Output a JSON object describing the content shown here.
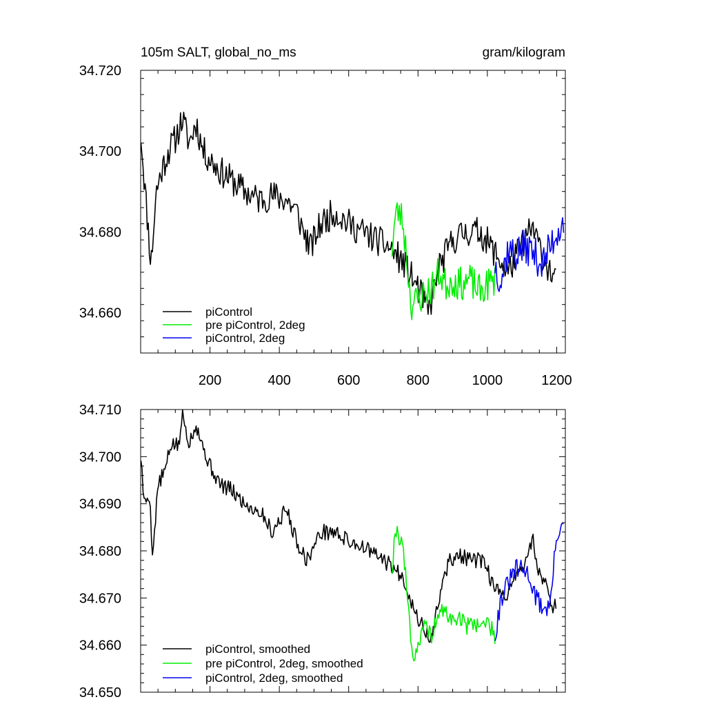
{
  "chart_data": [
    {
      "type": "line",
      "title": "105m SALT, global_no_ms",
      "units": "gram/kilogram",
      "xlim": [
        0,
        1225
      ],
      "ylim": [
        34.65,
        34.72
      ],
      "xticks": [
        200,
        400,
        600,
        800,
        1000,
        1200
      ],
      "xtick_labels": [
        "200",
        "400",
        "600",
        "800",
        "1000",
        "1200"
      ],
      "yticks": [
        34.66,
        34.68,
        34.7,
        34.72
      ],
      "ytick_labels": [
        "34.660",
        "34.680",
        "34.700",
        "34.720"
      ],
      "legend": {
        "placement": "bottom-left"
      },
      "series": [
        {
          "name": "piControl",
          "color": "#000000",
          "noise": 0.0038,
          "seed": 11,
          "points": [
            [
              1,
              34.704
            ],
            [
              15,
              34.688
            ],
            [
              30,
              34.672
            ],
            [
              45,
              34.69
            ],
            [
              60,
              34.695
            ],
            [
              80,
              34.7
            ],
            [
              100,
              34.703
            ],
            [
              120,
              34.708
            ],
            [
              140,
              34.702
            ],
            [
              160,
              34.707
            ],
            [
              180,
              34.7
            ],
            [
              200,
              34.698
            ],
            [
              230,
              34.695
            ],
            [
              260,
              34.693
            ],
            [
              300,
              34.69
            ],
            [
              340,
              34.688
            ],
            [
              380,
              34.689
            ],
            [
              420,
              34.688
            ],
            [
              450,
              34.685
            ],
            [
              470,
              34.68
            ],
            [
              490,
              34.676
            ],
            [
              520,
              34.682
            ],
            [
              560,
              34.685
            ],
            [
              600,
              34.682
            ],
            [
              640,
              34.68
            ],
            [
              680,
              34.678
            ],
            [
              720,
              34.676
            ],
            [
              760,
              34.672
            ],
            [
              800,
              34.666
            ],
            [
              830,
              34.66
            ],
            [
              860,
              34.671
            ],
            [
              900,
              34.678
            ],
            [
              940,
              34.68
            ],
            [
              980,
              34.68
            ],
            [
              1020,
              34.675
            ],
            [
              1060,
              34.67
            ],
            [
              1100,
              34.677
            ],
            [
              1130,
              34.681
            ],
            [
              1160,
              34.674
            ],
            [
              1200,
              34.667
            ]
          ]
        },
        {
          "name": "pre piControl, 2deg",
          "color": "#00ee00",
          "noise": 0.0042,
          "seed": 23,
          "points": [
            [
              725,
              34.676
            ],
            [
              735,
              34.684
            ],
            [
              745,
              34.685
            ],
            [
              755,
              34.683
            ],
            [
              765,
              34.676
            ],
            [
              780,
              34.662
            ],
            [
              800,
              34.663
            ],
            [
              820,
              34.665
            ],
            [
              840,
              34.666
            ],
            [
              860,
              34.67
            ],
            [
              880,
              34.667
            ],
            [
              900,
              34.668
            ],
            [
              920,
              34.667
            ],
            [
              950,
              34.668
            ],
            [
              980,
              34.665
            ],
            [
              1000,
              34.667
            ],
            [
              1022,
              34.668
            ]
          ]
        },
        {
          "name": "piControl, 2deg",
          "color": "#0000ee",
          "noise": 0.0045,
          "seed": 37,
          "points": [
            [
              1022,
              34.672
            ],
            [
              1040,
              34.668
            ],
            [
              1060,
              34.676
            ],
            [
              1080,
              34.674
            ],
            [
              1100,
              34.676
            ],
            [
              1120,
              34.676
            ],
            [
              1140,
              34.674
            ],
            [
              1160,
              34.672
            ],
            [
              1180,
              34.676
            ],
            [
              1200,
              34.68
            ],
            [
              1222,
              34.683
            ]
          ]
        }
      ]
    },
    {
      "type": "line",
      "title": "",
      "xlim": [
        0,
        1225
      ],
      "ylim": [
        34.65,
        34.71
      ],
      "xticks": [
        200,
        400,
        600,
        800,
        1000,
        1200
      ],
      "yticks": [
        34.65,
        34.66,
        34.67,
        34.68,
        34.69,
        34.7,
        34.71
      ],
      "ytick_labels": [
        "34.650",
        "34.660",
        "34.670",
        "34.680",
        "34.690",
        "34.700",
        "34.710"
      ],
      "legend": {
        "placement": "bottom-left"
      },
      "series": [
        {
          "name": "piControl, smoothed",
          "color": "#000000",
          "noise": 0.0017,
          "seed": 5,
          "points": [
            [
              1,
              34.7
            ],
            [
              10,
              34.69
            ],
            [
              25,
              34.692
            ],
            [
              35,
              34.679
            ],
            [
              50,
              34.694
            ],
            [
              70,
              34.697
            ],
            [
              90,
              34.703
            ],
            [
              110,
              34.702
            ],
            [
              120,
              34.709
            ],
            [
              140,
              34.703
            ],
            [
              160,
              34.707
            ],
            [
              180,
              34.702
            ],
            [
              200,
              34.698
            ],
            [
              230,
              34.694
            ],
            [
              260,
              34.693
            ],
            [
              300,
              34.69
            ],
            [
              350,
              34.688
            ],
            [
              380,
              34.684
            ],
            [
              420,
              34.689
            ],
            [
              450,
              34.682
            ],
            [
              480,
              34.678
            ],
            [
              520,
              34.684
            ],
            [
              560,
              34.684
            ],
            [
              600,
              34.682
            ],
            [
              640,
              34.681
            ],
            [
              680,
              34.679
            ],
            [
              720,
              34.677
            ],
            [
              760,
              34.674
            ],
            [
              790,
              34.667
            ],
            [
              820,
              34.663
            ],
            [
              840,
              34.661
            ],
            [
              860,
              34.67
            ],
            [
              890,
              34.678
            ],
            [
              920,
              34.679
            ],
            [
              950,
              34.678
            ],
            [
              980,
              34.678
            ],
            [
              1000,
              34.676
            ],
            [
              1020,
              34.672
            ],
            [
              1050,
              34.67
            ],
            [
              1080,
              34.675
            ],
            [
              1110,
              34.677
            ],
            [
              1130,
              34.683
            ],
            [
              1150,
              34.675
            ],
            [
              1170,
              34.673
            ],
            [
              1190,
              34.668
            ],
            [
              1198,
              34.669
            ]
          ]
        },
        {
          "name": "pre piControl, 2deg, smoothed",
          "color": "#00ee00",
          "noise": 0.0018,
          "seed": 19,
          "points": [
            [
              725,
              34.676
            ],
            [
              735,
              34.685
            ],
            [
              745,
              34.683
            ],
            [
              755,
              34.682
            ],
            [
              765,
              34.674
            ],
            [
              775,
              34.666
            ],
            [
              785,
              34.657
            ],
            [
              800,
              34.66
            ],
            [
              820,
              34.664
            ],
            [
              840,
              34.662
            ],
            [
              860,
              34.667
            ],
            [
              880,
              34.667
            ],
            [
              900,
              34.665
            ],
            [
              920,
              34.666
            ],
            [
              940,
              34.664
            ],
            [
              960,
              34.665
            ],
            [
              980,
              34.664
            ],
            [
              1000,
              34.665
            ],
            [
              1022,
              34.662
            ]
          ]
        },
        {
          "name": "piControl, 2deg, smoothed",
          "color": "#0000ee",
          "noise": 0.0022,
          "seed": 31,
          "points": [
            [
              1022,
              34.662
            ],
            [
              1040,
              34.67
            ],
            [
              1060,
              34.673
            ],
            [
              1080,
              34.676
            ],
            [
              1100,
              34.676
            ],
            [
              1120,
              34.675
            ],
            [
              1140,
              34.67
            ],
            [
              1160,
              34.668
            ],
            [
              1180,
              34.668
            ],
            [
              1200,
              34.683
            ],
            [
              1212,
              34.686
            ],
            [
              1222,
              34.684
            ]
          ]
        }
      ]
    }
  ]
}
